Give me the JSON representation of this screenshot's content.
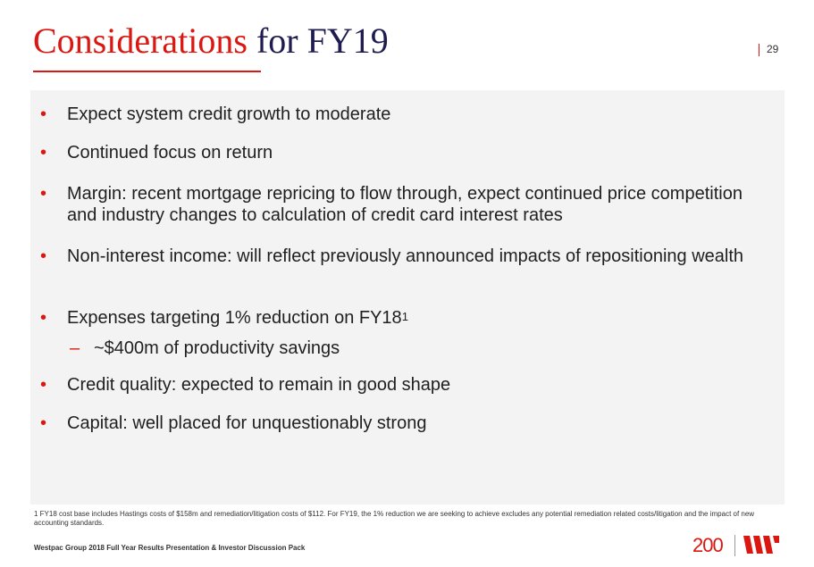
{
  "title": {
    "accent": "Considerations",
    "main": "for FY19"
  },
  "page_number": "29",
  "bullets": [
    "Expect system credit growth to moderate",
    "Continued focus on return",
    "Margin: recent mortgage repricing to flow through, expect continued price competition and industry changes to calculation of credit card interest rates",
    "Non-interest income: will reflect previously announced impacts of repositioning wealth",
    "Expenses targeting 1% reduction on FY18",
    "Credit quality: expected to remain in good shape",
    "Capital: well placed for unquestionably strong"
  ],
  "bullet_marker": "•",
  "footnote_ref": "1",
  "sub_marker": "–",
  "sub_bullet": "~$400m of productivity savings",
  "footnote": "1 FY18 cost base includes Hastings costs of $158m and remediation/litigation costs of $112. For FY19, the 1% reduction we are seeking to achieve excludes any potential remediation related costs/litigation and the impact of new accounting standards.",
  "footer": "Westpac Group 2018 Full Year Results Presentation & Investor Discussion Pack",
  "logo": {
    "anniversary": "200",
    "brand_icon": "westpac-w-logo"
  },
  "colors": {
    "accent": "#da1710",
    "navy": "#1f1c4f",
    "panel": "#f3f3f3"
  }
}
